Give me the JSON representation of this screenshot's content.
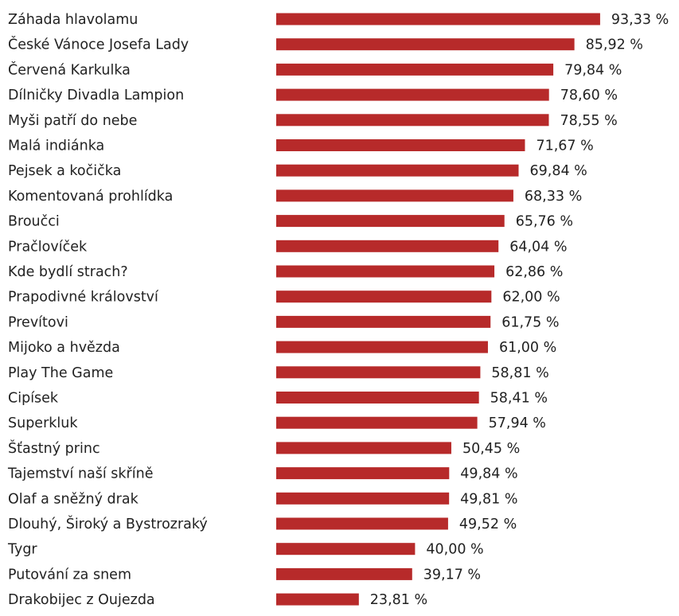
{
  "chart_data": {
    "type": "bar",
    "orientation": "horizontal",
    "bar_color": "#b72a2a",
    "xlim": [
      0,
      100
    ],
    "grid": false,
    "title": "",
    "xlabel": "",
    "ylabel": "",
    "categories": [
      "Záhada hlavolamu",
      "České Vánoce Josefa Lady",
      "Červená Karkulka",
      "Dílničky Divadla Lampion",
      "Myši patří do nebe",
      "Malá indiánka",
      "Pejsek a kočička",
      "Komentovaná prohlídka",
      "Broučci",
      "Pračlovíček",
      "Kde bydlí strach?",
      "Prapodivné království",
      "Prevítovi",
      "Mijoko a hvězda",
      "Play The Game",
      "Cipísek",
      "Superkluk",
      "Šťastný princ",
      "Tajemství naší skříně",
      "Olaf a sněžný drak",
      "Dlouhý, Široký a Bystrozraký",
      "Tygr",
      "Putování za snem",
      "Drakobijec z Oujezda"
    ],
    "values": [
      93.33,
      85.92,
      79.84,
      78.6,
      78.55,
      71.67,
      69.84,
      68.33,
      65.76,
      64.04,
      62.86,
      62.0,
      61.75,
      61.0,
      58.81,
      58.41,
      57.94,
      50.45,
      49.84,
      49.81,
      49.52,
      40.0,
      39.17,
      23.81
    ],
    "value_labels": [
      "93,33 %",
      "85,92 %",
      "79,84 %",
      "78,60 %",
      "78,55 %",
      "71,67 %",
      "69,84 %",
      "68,33 %",
      "65,76 %",
      "64,04 %",
      "62,86 %",
      "62,00 %",
      "61,75 %",
      "61,00 %",
      "58,81 %",
      "58,41 %",
      "57,94 %",
      "50,45 %",
      "49,84 %",
      "49,81 %",
      "49,52 %",
      "40,00 %",
      "39,17 %",
      "23,81 %"
    ]
  }
}
